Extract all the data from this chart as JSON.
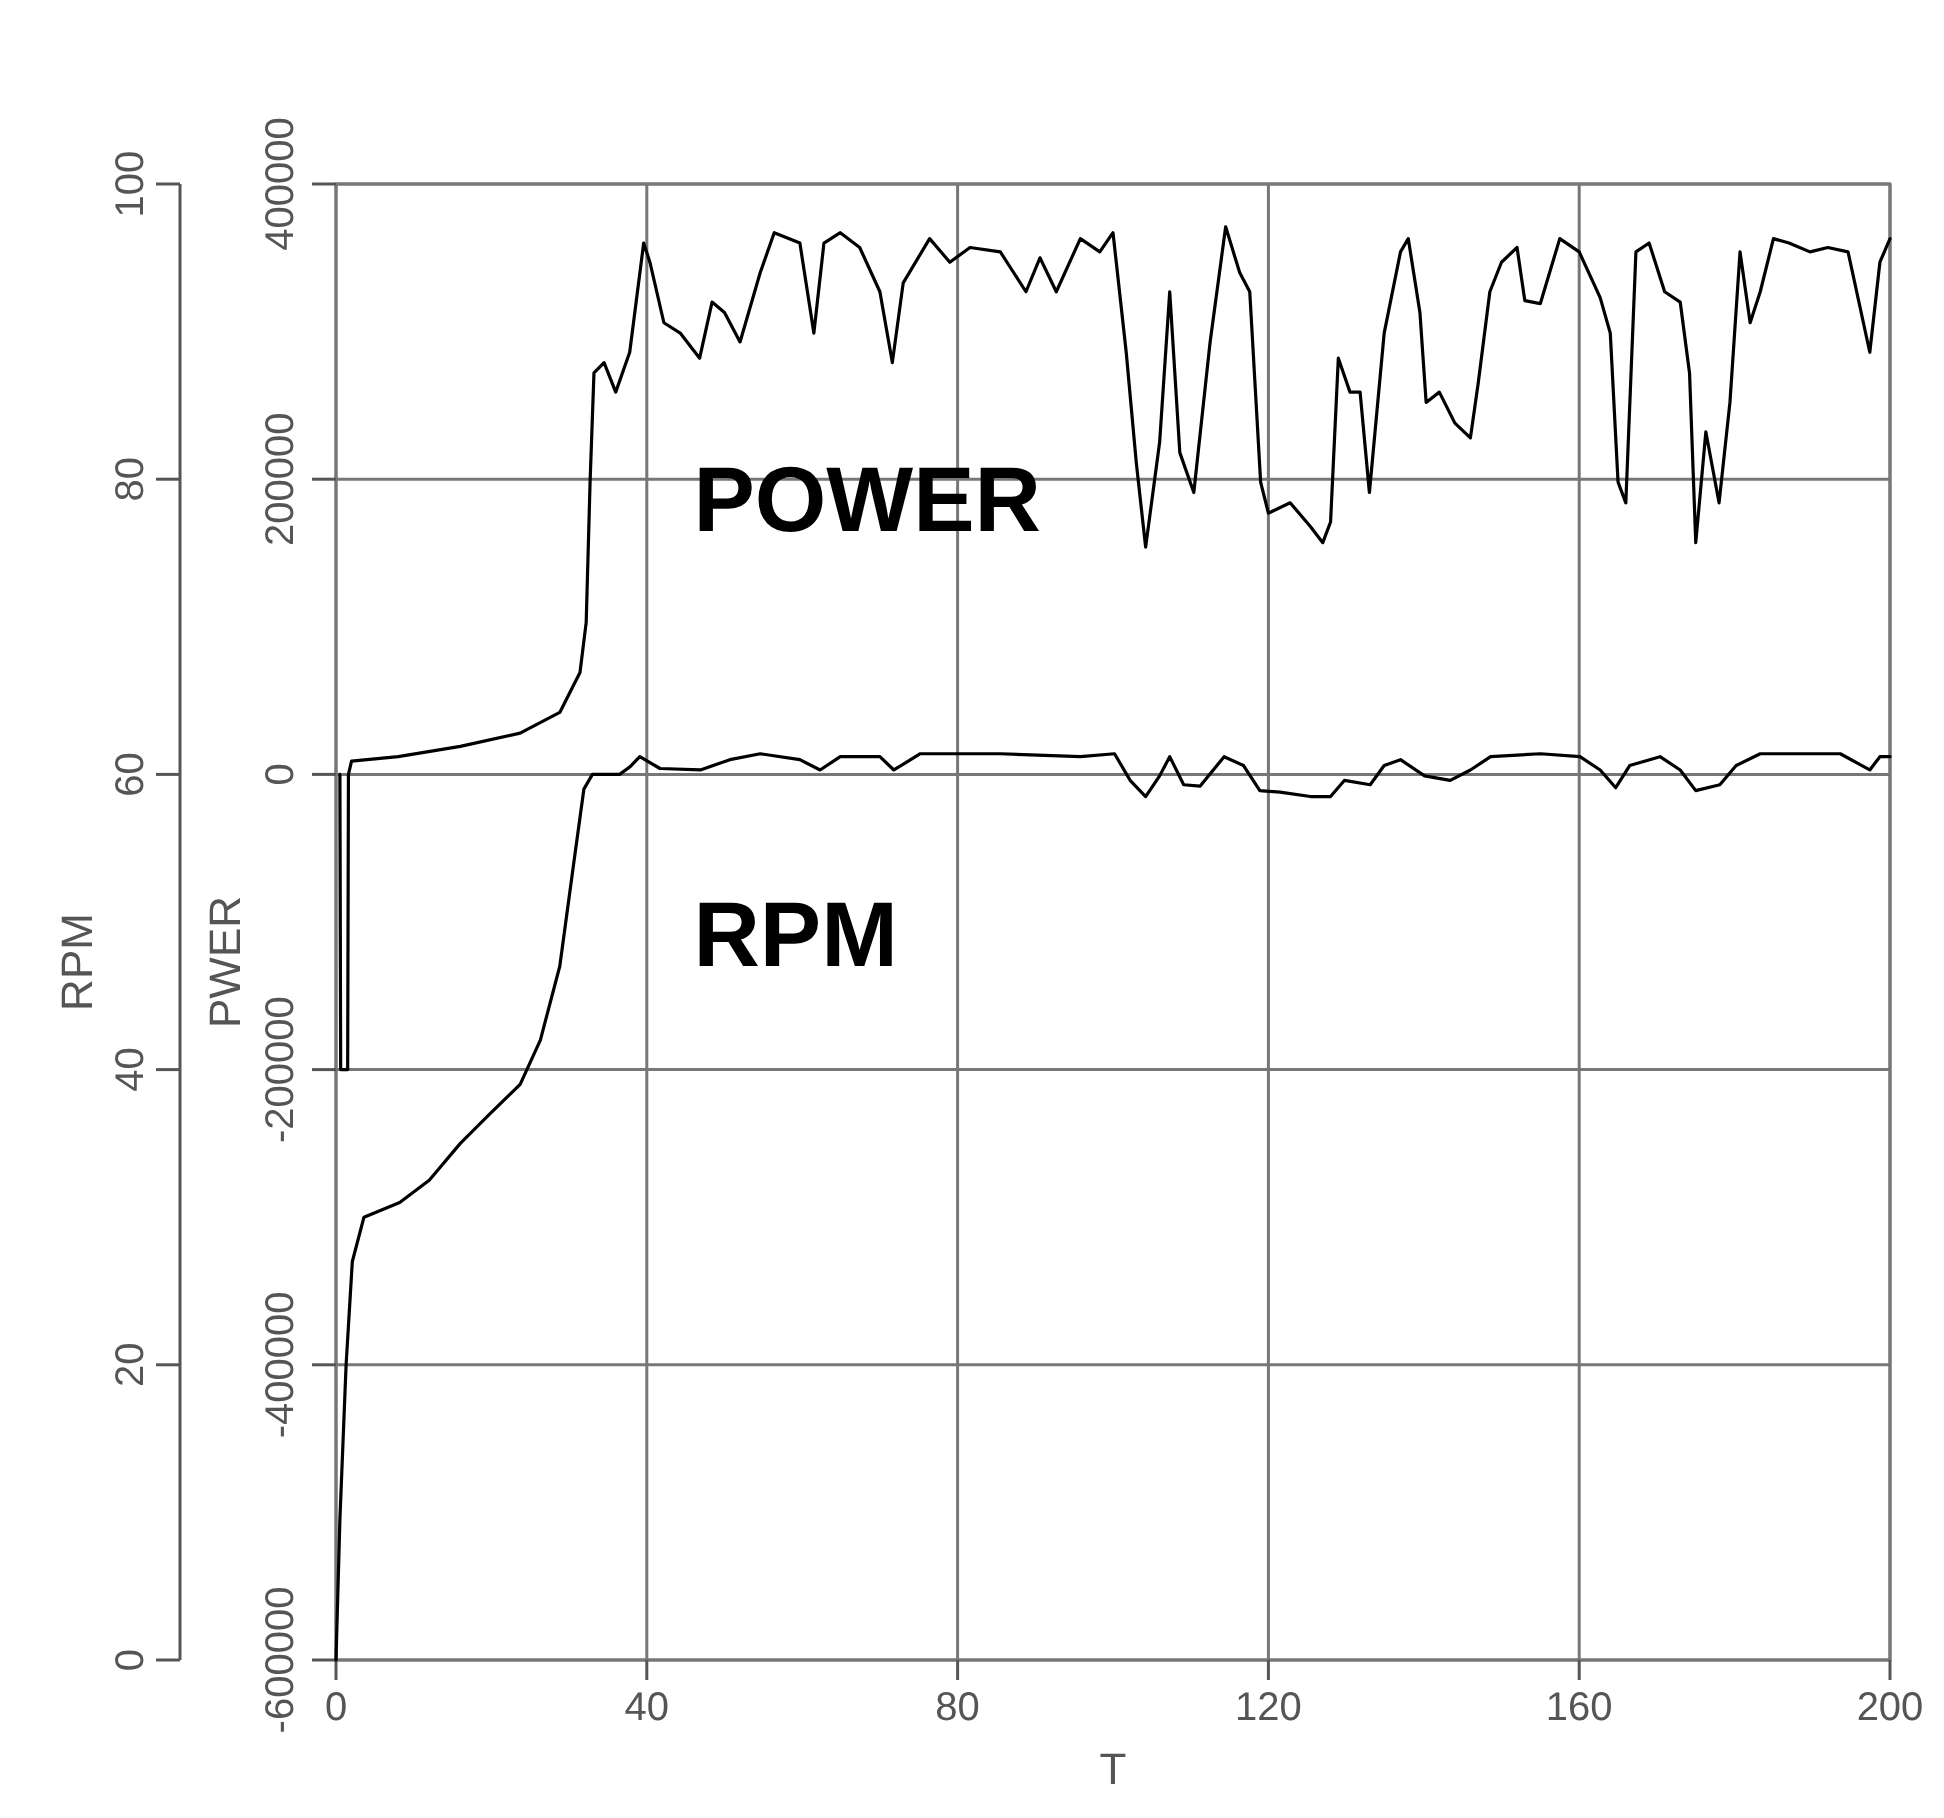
{
  "chart_data": {
    "type": "line",
    "xlabel": "T",
    "ylabel": "RPM",
    "y2label": "PWER",
    "xlim": [
      0,
      200
    ],
    "xticks": [
      0,
      40,
      80,
      120,
      160,
      200
    ],
    "ylim": [
      0,
      100
    ],
    "yticks": [
      0,
      20,
      40,
      60,
      80,
      100
    ],
    "y2lim": [
      -600000,
      400000
    ],
    "y2ticks": [
      -600000,
      -400000,
      -200000,
      0,
      200000,
      400000
    ],
    "grid": true,
    "legend": false,
    "series": [
      {
        "name": "POWER",
        "color": "#000000",
        "axis": "y2",
        "x": [
          0.5,
          0.6,
          1.5,
          1.6,
          2,
          8,
          16,
          23.7,
          28.8,
          31.4,
          32.2,
          32.7,
          33.2,
          34.5,
          36,
          37.8,
          39.6,
          40.4,
          42.2,
          44.3,
          46.8,
          48.4,
          50,
          52,
          54.6,
          56.4,
          59.7,
          61.5,
          62.8,
          64.9,
          67.4,
          70,
          71.6,
          73,
          76.4,
          79,
          81.6,
          85.5,
          88.8,
          90.6,
          92.7,
          95.8,
          98.3,
          100,
          101.7,
          103,
          104.2,
          106,
          107.3,
          108.6,
          110.4,
          112.5,
          114.5,
          116.3,
          117.6,
          119,
          120,
          122.8,
          125.4,
          127,
          128,
          129,
          130.5,
          131.8,
          133,
          134.9,
          137,
          138,
          139.5,
          140.3,
          142,
          144,
          146,
          147,
          148.5,
          150,
          152,
          153,
          155,
          157.5,
          160,
          162.7,
          164,
          165,
          166,
          167.3,
          169,
          171,
          173,
          174.2,
          175,
          176.3,
          178,
          179.4,
          180.7,
          182,
          183.3,
          185,
          187,
          189.7,
          192,
          194.6,
          197.4,
          198.7,
          200
        ],
        "values": [
          0,
          -200000,
          -200000,
          0,
          9000,
          12000,
          19000,
          28000,
          42000,
          69000,
          103000,
          198000,
          272000,
          279000,
          259000,
          286000,
          360000,
          347000,
          306000,
          299000,
          282000,
          320000,
          313000,
          293000,
          340000,
          367000,
          360000,
          299000,
          360000,
          367000,
          357000,
          327000,
          279000,
          333000,
          363000,
          347000,
          357000,
          354000,
          327000,
          350000,
          327000,
          363000,
          354000,
          367000,
          286000,
          211000,
          154000,
          225000,
          327000,
          218000,
          191000,
          293000,
          371000,
          340000,
          327000,
          198000,
          177000,
          184000,
          168000,
          157000,
          171000,
          282000,
          259000,
          259000,
          191000,
          299000,
          354000,
          363000,
          313000,
          252000,
          259000,
          238000,
          228000,
          265000,
          327000,
          347000,
          357000,
          321000,
          319000,
          363000,
          354000,
          323000,
          299000,
          198000,
          184000,
          354000,
          360000,
          327000,
          320000,
          272000,
          157000,
          232000,
          184000,
          252000,
          354000,
          306000,
          327000,
          363000,
          360000,
          354000,
          357000,
          354000,
          286000,
          347000,
          363000
        ]
      },
      {
        "name": "RPM",
        "color": "#000000",
        "x": [
          0,
          0.5,
          1.3,
          2.1,
          3.6,
          8.2,
          12,
          16,
          19.8,
          23.7,
          26.3,
          28.8,
          30.6,
          31.9,
          33,
          36.5,
          37.8,
          39.1,
          41.7,
          46.9,
          50.7,
          54.6,
          59.7,
          62.3,
          64.9,
          70,
          71.8,
          75.2,
          85.5,
          95.8,
          100.2,
          102.2,
          104.2,
          106,
          107.3,
          109.1,
          111.2,
          114.3,
          116.8,
          118.9,
          121.5,
          125.4,
          128,
          129.8,
          133.1,
          134.9,
          137,
          140.1,
          143.4,
          146,
          148.6,
          155,
          160.1,
          162.7,
          164.7,
          166.5,
          170.4,
          173,
          175,
          178.1,
          180.2,
          183.3,
          193.6,
          197.4,
          198.7,
          200
        ],
        "values": [
          0,
          9.5,
          20,
          27,
          30,
          31,
          32.5,
          35,
          37,
          39,
          42,
          47,
          54,
          59,
          60,
          60,
          60.5,
          61.2,
          60.4,
          60.3,
          61,
          61.4,
          61,
          60.3,
          61.2,
          61.2,
          60.3,
          61.4,
          61.4,
          61.2,
          61.4,
          59.6,
          58.5,
          59.9,
          61.2,
          59.3,
          59.2,
          61.2,
          60.6,
          58.9,
          58.8,
          58.5,
          58.5,
          59.6,
          59.3,
          60.6,
          61,
          59.9,
          59.6,
          60.3,
          61.2,
          61.4,
          61.2,
          60.3,
          59.1,
          60.6,
          61.2,
          60.3,
          58.9,
          59.3,
          60.6,
          61.4,
          61.4,
          60.3,
          61.2,
          61.2
        ]
      }
    ]
  }
}
